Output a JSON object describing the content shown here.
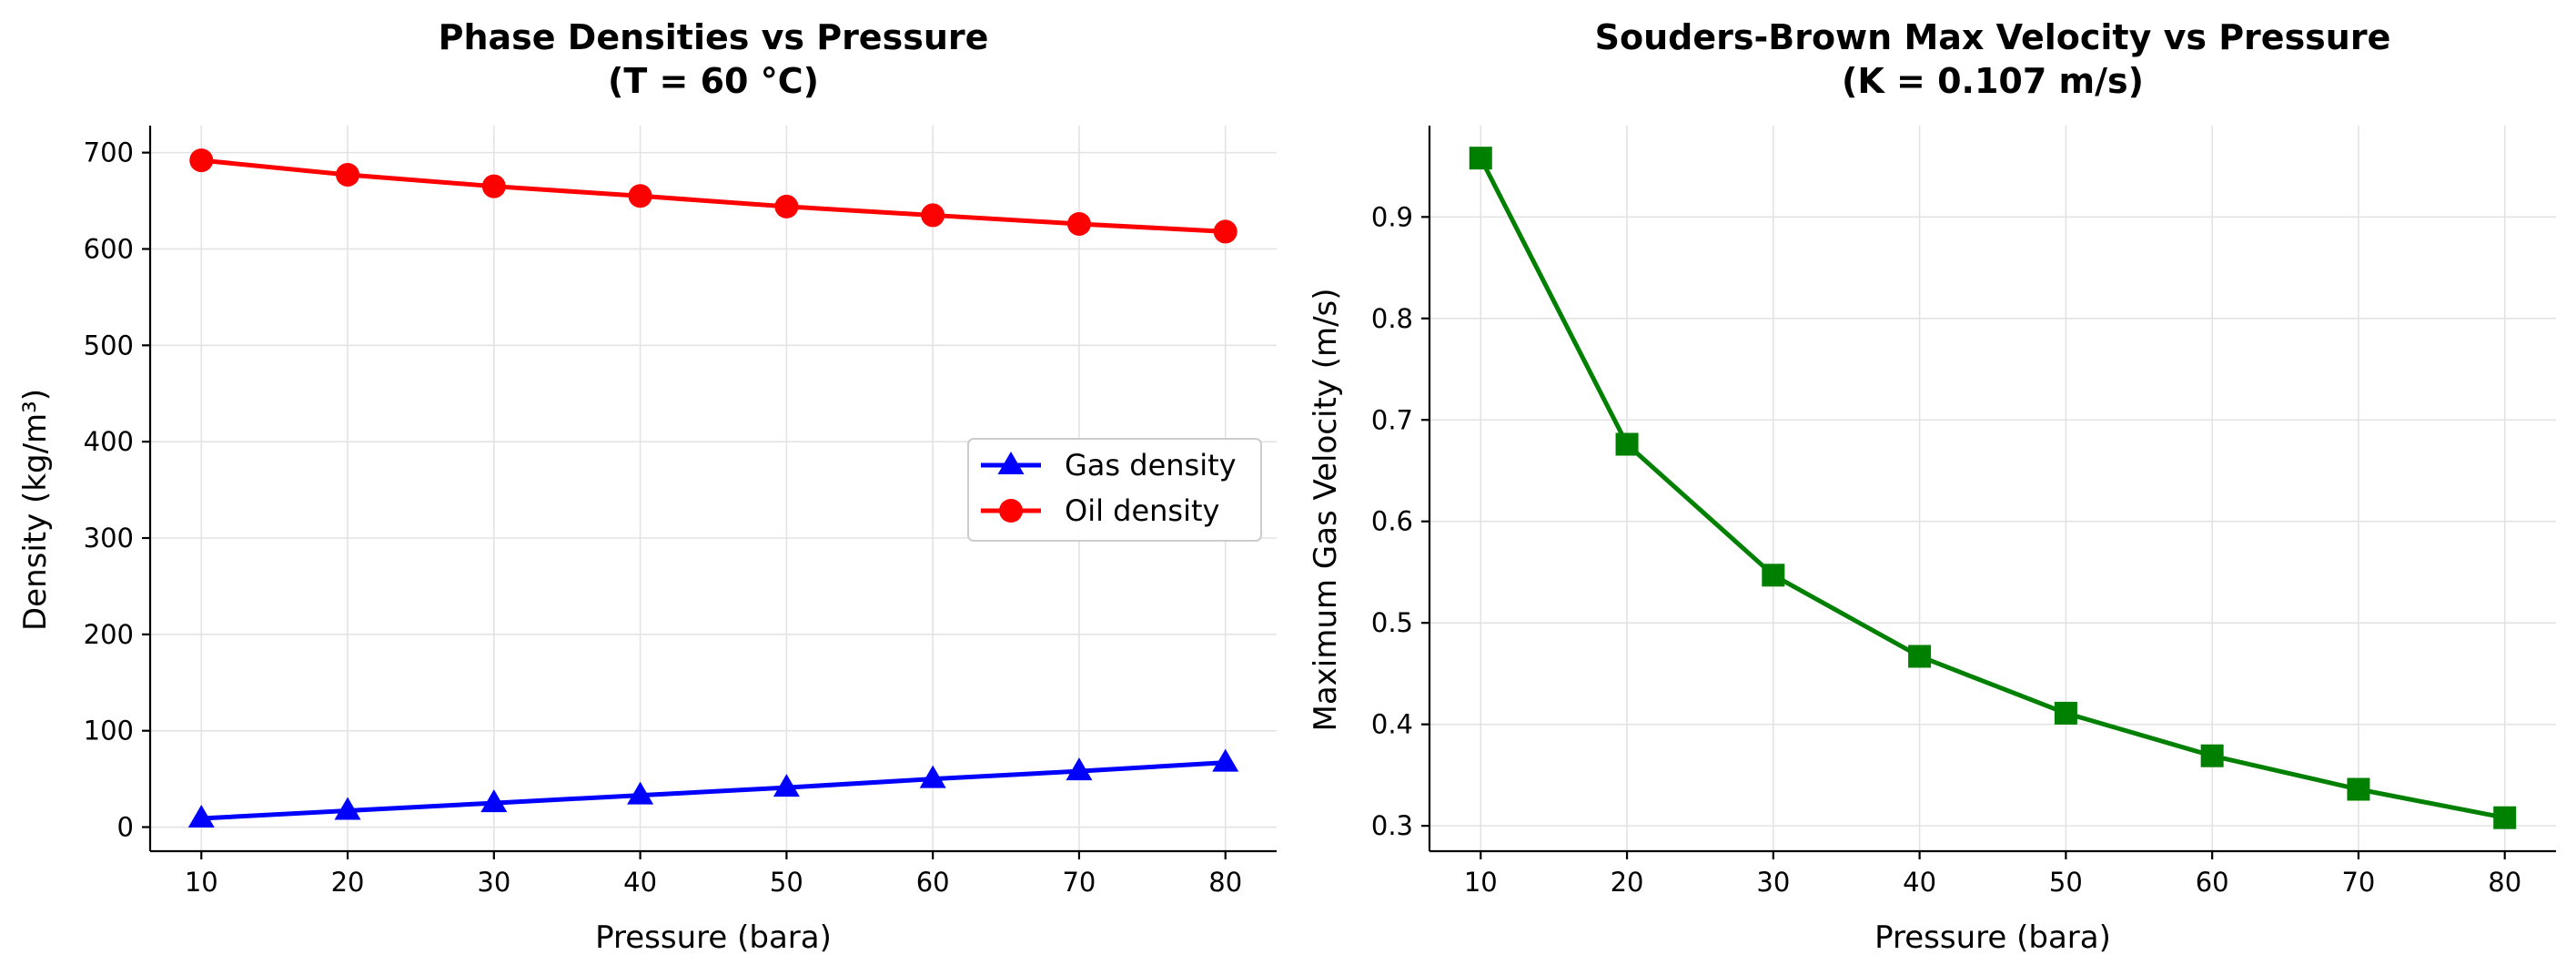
{
  "chart_data": [
    {
      "type": "line",
      "title": [
        "Phase Densities vs Pressure",
        "(T = 60 °C)"
      ],
      "xlabel": "Pressure (bara)",
      "ylabel": "Density (kg/m³)",
      "x": [
        10,
        20,
        30,
        40,
        50,
        60,
        70,
        80
      ],
      "xticks": [
        "10",
        "20",
        "30",
        "40",
        "50",
        "60",
        "70",
        "80"
      ],
      "xlim": [
        6.5,
        83.5
      ],
      "ylim": [
        -25,
        728
      ],
      "yticks": [
        "0",
        "100",
        "200",
        "300",
        "400",
        "500",
        "600",
        "700"
      ],
      "ytick_values": [
        0,
        100,
        200,
        300,
        400,
        500,
        600,
        700
      ],
      "grid": true,
      "legend": "center-right",
      "series": [
        {
          "name": "Gas density",
          "marker": "triangle",
          "color": "#0000ff",
          "values": [
            9,
            17,
            25,
            33,
            41,
            50,
            58,
            67
          ]
        },
        {
          "name": "Oil density",
          "marker": "circle",
          "color": "#ff0000",
          "values": [
            692,
            677,
            665,
            655,
            644,
            635,
            626,
            618
          ]
        }
      ]
    },
    {
      "type": "line",
      "title": [
        "Souders-Brown Max Velocity vs Pressure",
        "(K = 0.107 m/s)"
      ],
      "xlabel": "Pressure (bara)",
      "ylabel": "Maximum Gas Velocity (m/s)",
      "x": [
        10,
        20,
        30,
        40,
        50,
        60,
        70,
        80
      ],
      "xticks": [
        "10",
        "20",
        "30",
        "40",
        "50",
        "60",
        "70",
        "80"
      ],
      "xlim": [
        6.5,
        83.5
      ],
      "ylim": [
        0.275,
        0.99
      ],
      "yticks": [
        "0.3",
        "0.4",
        "0.5",
        "0.6",
        "0.7",
        "0.8",
        "0.9"
      ],
      "ytick_values": [
        0.3,
        0.4,
        0.5,
        0.6,
        0.7,
        0.8,
        0.9
      ],
      "grid": true,
      "series": [
        {
          "name": "",
          "marker": "square",
          "color": "#008000",
          "values": [
            0.958,
            0.676,
            0.547,
            0.467,
            0.411,
            0.369,
            0.336,
            0.308
          ]
        }
      ]
    }
  ]
}
